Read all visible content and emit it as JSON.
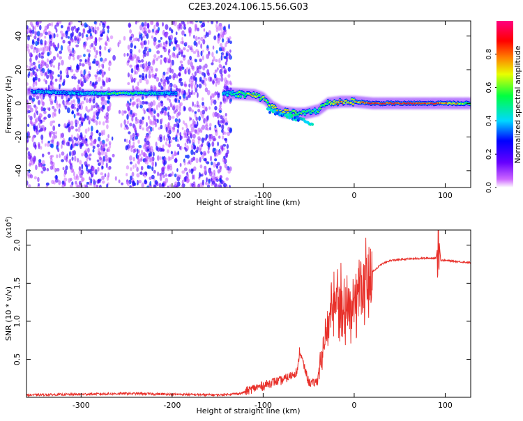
{
  "title": "C2E3.2024.106.15.56.G03",
  "colors": {
    "axis": "#000000",
    "snr_line": "#e8302a",
    "spectrogram_low": "#7b1fe0",
    "spectrogram_mid": "#00e0ff",
    "spectrogram_high": "#ff2020"
  },
  "chart_data": [
    {
      "type": "heatmap",
      "name": "spectrogram",
      "xlabel": "Height of straight line (km)",
      "ylabel": "Frequency (Hz)",
      "xlim": [
        -360,
        128
      ],
      "ylim": [
        -50,
        49
      ],
      "xticks": [
        -300,
        -200,
        -100,
        0,
        100
      ],
      "yticks": [
        -40,
        -20,
        0,
        20,
        40
      ],
      "colorbar": {
        "label": "Normalized spectral amplitude",
        "range": [
          0.0,
          1.0
        ],
        "ticks": [
          0.0,
          0.2,
          0.4,
          0.6,
          0.8
        ],
        "colormap": "rainbow (magenta-purple-blue-cyan-green-yellow-orange-red-pink)"
      },
      "ridge": [
        {
          "x": -350,
          "y": 7,
          "amp": 0.35
        },
        {
          "x": -300,
          "y": 6,
          "amp": 0.35
        },
        {
          "x": -260,
          "y": 6,
          "amp": 0.55
        },
        {
          "x": -200,
          "y": 6,
          "amp": 0.35
        },
        {
          "x": -140,
          "y": 6,
          "amp": 0.4
        },
        {
          "x": -110,
          "y": 5,
          "amp": 0.7
        },
        {
          "x": -100,
          "y": 3,
          "amp": 0.6
        },
        {
          "x": -90,
          "y": -2,
          "amp": 0.6
        },
        {
          "x": -80,
          "y": -5,
          "amp": 0.7
        },
        {
          "x": -65,
          "y": -6,
          "amp": 0.6
        },
        {
          "x": -55,
          "y": -6,
          "amp": 0.5
        },
        {
          "x": -40,
          "y": -4,
          "amp": 0.5
        },
        {
          "x": -30,
          "y": 0,
          "amp": 0.6
        },
        {
          "x": -15,
          "y": 1,
          "amp": 0.8
        },
        {
          "x": 0,
          "y": 1,
          "amp": 0.7
        },
        {
          "x": 20,
          "y": 0,
          "amp": 0.9
        },
        {
          "x": 60,
          "y": 0,
          "amp": 0.85
        },
        {
          "x": 90,
          "y": 0,
          "amp": 0.85
        },
        {
          "x": 128,
          "y": 0,
          "amp": 0.6
        }
      ]
    },
    {
      "type": "line",
      "name": "snr",
      "xlabel": "Height of straight line (km)",
      "ylabel": "SNR (10 * v/v)",
      "ylabel_scale": "(x10^4)",
      "xlim": [
        -360,
        128
      ],
      "ylim": [
        0.0,
        2.2
      ],
      "xticks": [
        -300,
        -200,
        -100,
        0,
        100
      ],
      "yticks": [
        0.5,
        1.0,
        1.5,
        2.0
      ],
      "series": [
        {
          "x": [
            -360,
            -300,
            -250,
            -200,
            -150,
            -125,
            -110,
            -100,
            -90,
            -80,
            -70,
            -62,
            -60,
            -55,
            -50,
            -45,
            -40,
            -35,
            -30,
            -25,
            -20,
            -15,
            -10,
            -5,
            0,
            10,
            20,
            30,
            40,
            60,
            80,
            90,
            93,
            95,
            100,
            110,
            128
          ],
          "y": [
            0.03,
            0.04,
            0.05,
            0.04,
            0.03,
            0.05,
            0.12,
            0.15,
            0.2,
            0.22,
            0.28,
            0.35,
            0.62,
            0.4,
            0.2,
            0.18,
            0.22,
            0.6,
            0.85,
            1.2,
            1.4,
            1.3,
            1.05,
            1.2,
            1.35,
            1.45,
            1.65,
            1.75,
            1.8,
            1.82,
            1.83,
            1.83,
            2.12,
            1.8,
            1.8,
            1.79,
            1.77
          ]
        }
      ]
    }
  ]
}
